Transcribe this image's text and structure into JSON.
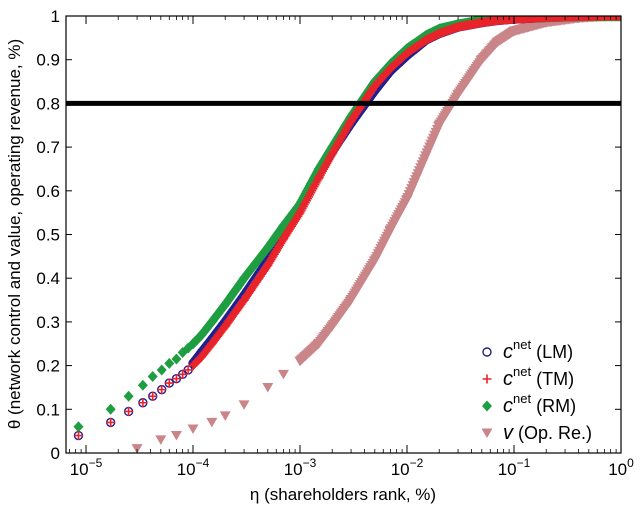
{
  "chart_data": {
    "type": "scatter",
    "xlabel": "η (shareholders rank, %)",
    "ylabel": "θ (network control and value, operating revenue, %)",
    "xscale": "log",
    "xlim": [
      6.5e-06,
      1
    ],
    "ylim": [
      0,
      1
    ],
    "x_tick_values": [
      1e-05,
      0.0001,
      0.001,
      0.01,
      0.1,
      1
    ],
    "x_tick_labels": [
      {
        "base": "10",
        "exp": "−5"
      },
      {
        "base": "10",
        "exp": "−4"
      },
      {
        "base": "10",
        "exp": "−3"
      },
      {
        "base": "10",
        "exp": "−2"
      },
      {
        "base": "10",
        "exp": "−1"
      },
      {
        "base": "10",
        "exp": "0"
      }
    ],
    "y_ticks": [
      "0",
      "0.1",
      "0.2",
      "0.3",
      "0.4",
      "0.5",
      "0.6",
      "0.7",
      "0.8",
      "0.9",
      "1"
    ],
    "y_tick_values": [
      0,
      0.1,
      0.2,
      0.3,
      0.4,
      0.5,
      0.6,
      0.7,
      0.8,
      0.9,
      1
    ],
    "grid": false,
    "legend_position": "bottom-right",
    "reference_line": {
      "y": 0.8,
      "color": "#000000"
    },
    "series": [
      {
        "legend_main": "c",
        "legend_sup": "net",
        "legend_tail": " (LM)",
        "marker": "circle",
        "color": "#1f1f8f",
        "x": [
          8.5e-06,
          1.7e-05,
          2.5e-05,
          3.4e-05,
          4.2e-05,
          5.1e-05,
          6e-05,
          7e-05,
          8e-05,
          9e-05,
          0.0001,
          0.00012,
          0.00015,
          0.0002,
          0.0003,
          0.0005,
          0.0007,
          0.001,
          0.0015,
          0.002,
          0.003,
          0.005,
          0.007,
          0.01,
          0.015,
          0.02,
          0.03,
          0.05,
          0.07,
          0.1,
          0.2,
          0.4,
          0.7,
          1
        ],
        "y": [
          0.04,
          0.07,
          0.095,
          0.115,
          0.13,
          0.145,
          0.16,
          0.17,
          0.18,
          0.19,
          0.205,
          0.23,
          0.26,
          0.3,
          0.36,
          0.44,
          0.5,
          0.56,
          0.64,
          0.69,
          0.755,
          0.83,
          0.875,
          0.91,
          0.945,
          0.96,
          0.975,
          0.985,
          0.99,
          0.993,
          0.997,
          0.999,
          1,
          1
        ]
      },
      {
        "legend_main": "c",
        "legend_sup": "net",
        "legend_tail": " (TM)",
        "marker": "plus",
        "color": "#e8242a",
        "x": [
          8.5e-06,
          1.7e-05,
          2.5e-05,
          3.4e-05,
          4.2e-05,
          5.1e-05,
          6e-05,
          7e-05,
          8e-05,
          9e-05,
          0.0001,
          0.00012,
          0.00015,
          0.0002,
          0.0003,
          0.0005,
          0.0007,
          0.001,
          0.0015,
          0.002,
          0.003,
          0.005,
          0.007,
          0.01,
          0.015,
          0.02,
          0.03,
          0.05,
          0.07,
          0.1,
          0.2,
          0.4,
          0.7,
          1
        ],
        "y": [
          0.04,
          0.07,
          0.095,
          0.115,
          0.13,
          0.145,
          0.16,
          0.17,
          0.18,
          0.19,
          0.2,
          0.22,
          0.25,
          0.29,
          0.35,
          0.43,
          0.49,
          0.55,
          0.63,
          0.685,
          0.76,
          0.84,
          0.88,
          0.915,
          0.945,
          0.96,
          0.975,
          0.985,
          0.99,
          0.993,
          0.997,
          0.999,
          1,
          1
        ]
      },
      {
        "legend_main": "c",
        "legend_sup": "net",
        "legend_tail": " (RM)",
        "marker": "diamond",
        "color": "#1e9e40",
        "x": [
          8.5e-06,
          1.7e-05,
          2.5e-05,
          3.4e-05,
          4.2e-05,
          5.1e-05,
          6e-05,
          7e-05,
          8e-05,
          9e-05,
          0.0001,
          0.00012,
          0.00015,
          0.0002,
          0.0003,
          0.0005,
          0.0007,
          0.001,
          0.0015,
          0.002,
          0.003,
          0.005,
          0.007,
          0.01,
          0.015,
          0.02,
          0.03,
          0.05,
          0.07,
          0.1,
          0.2,
          0.4,
          0.7,
          1
        ],
        "y": [
          0.06,
          0.1,
          0.13,
          0.155,
          0.175,
          0.19,
          0.205,
          0.215,
          0.23,
          0.24,
          0.25,
          0.27,
          0.3,
          0.34,
          0.4,
          0.47,
          0.52,
          0.57,
          0.65,
          0.7,
          0.77,
          0.85,
          0.89,
          0.925,
          0.955,
          0.97,
          0.98,
          0.99,
          0.993,
          0.996,
          0.998,
          1,
          1,
          1
        ]
      },
      {
        "legend_main": "v",
        "legend_sup": "",
        "legend_tail": " (Op. Re.)",
        "marker": "triangle-down",
        "color": "#c98588",
        "x": [
          3e-05,
          5e-05,
          7e-05,
          0.0001,
          0.00015,
          0.0002,
          0.0003,
          0.0005,
          0.0007,
          0.001,
          0.0015,
          0.002,
          0.003,
          0.005,
          0.007,
          0.01,
          0.015,
          0.02,
          0.03,
          0.05,
          0.07,
          0.1,
          0.2,
          0.4,
          0.7,
          1
        ],
        "y": [
          0.01,
          0.03,
          0.04,
          0.055,
          0.07,
          0.085,
          0.11,
          0.15,
          0.18,
          0.21,
          0.25,
          0.29,
          0.35,
          0.44,
          0.51,
          0.58,
          0.68,
          0.75,
          0.82,
          0.9,
          0.94,
          0.965,
          0.985,
          0.995,
          0.999,
          1
        ]
      }
    ]
  }
}
